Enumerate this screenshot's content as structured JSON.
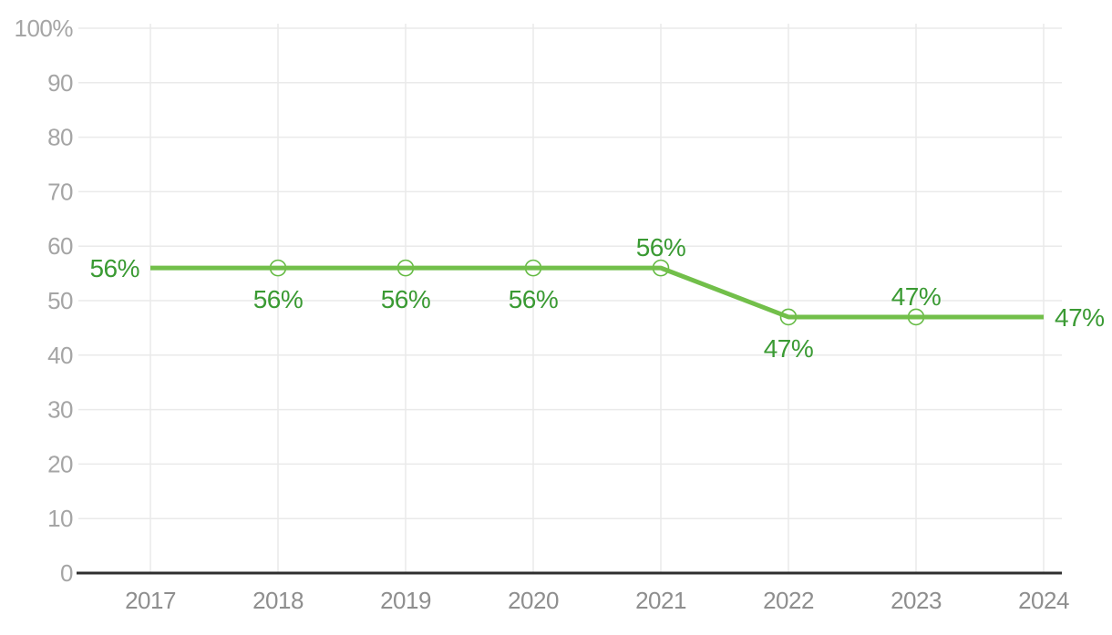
{
  "page": {
    "background": "#ffffff"
  },
  "chart_data": {
    "type": "line",
    "title": "",
    "xlabel": "",
    "ylabel": "",
    "categories": [
      "2017",
      "2018",
      "2019",
      "2020",
      "2021",
      "2022",
      "2023",
      "2024"
    ],
    "series": [
      {
        "name": "percentage-series",
        "values": [
          56,
          56,
          56,
          56,
          56,
          47,
          47,
          47
        ],
        "labels": [
          "56%",
          "56%",
          "56%",
          "56%",
          "56%",
          "47%",
          "47%",
          "47%"
        ],
        "label_positions": [
          "left",
          "below",
          "below",
          "below",
          "above",
          "below",
          "above",
          "right"
        ],
        "markers": [
          false,
          true,
          true,
          true,
          true,
          true,
          true,
          false
        ]
      }
    ],
    "ylim": [
      0,
      100
    ],
    "ytick_step": 10,
    "ytick_labels": [
      "0",
      "10",
      "20",
      "30",
      "40",
      "50",
      "60",
      "70",
      "80",
      "90",
      "100%"
    ],
    "grid": true,
    "legend": "none",
    "colors": {
      "line": "#72bf4a",
      "marker_fill": "#ffffff",
      "marker_stroke": "#64ba43",
      "data_label": "#3a9a33",
      "axis_text_y": "#a5a5a5",
      "axis_text_x": "#8e8e8e",
      "gridline": "#eaeaea",
      "axis_line": "#2f2f2f",
      "background": "#ffffff"
    }
  }
}
